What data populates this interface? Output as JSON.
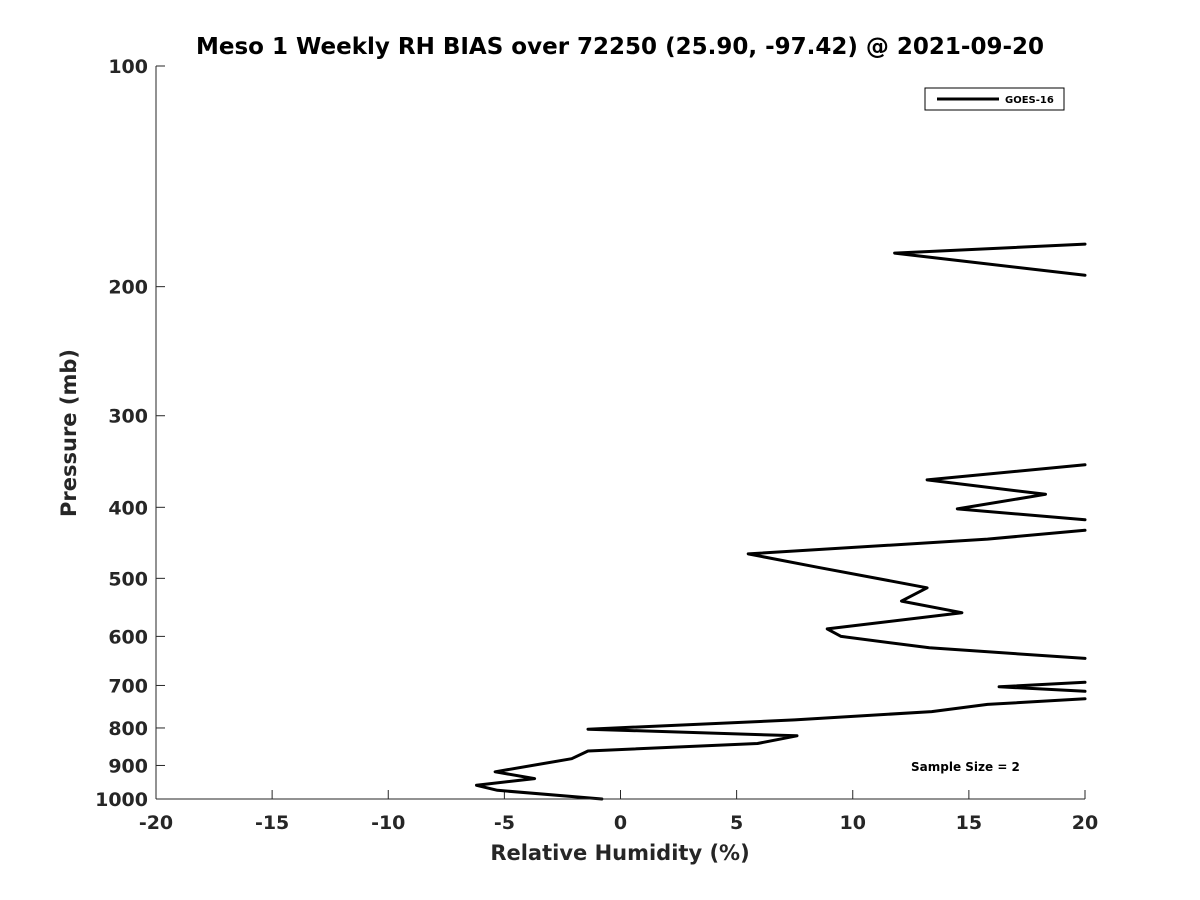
{
  "chart_data": {
    "type": "line",
    "title": "Meso 1 Weekly RH BIAS over 72250 (25.90, -97.42) @ 2021-09-20",
    "xlabel": "Relative Humidity (%)",
    "ylabel": "Pressure (mb)",
    "xlim": [
      -20,
      20
    ],
    "ylim": [
      100,
      1000
    ],
    "y_scale": "log",
    "y_reversed": true,
    "xticks": [
      "-20",
      "-15",
      "-10",
      "-5",
      "0",
      "5",
      "10",
      "15",
      "20"
    ],
    "yticks": [
      "100",
      "200",
      "300",
      "400",
      "500",
      "600",
      "700",
      "800",
      "900",
      "1000"
    ],
    "grid": false,
    "legend_position": "top-right",
    "annotation": "Sample Size = 2",
    "series": [
      {
        "name": "GOES-16",
        "color": "#000000",
        "segments": [
          [
            [
              20,
              175
            ],
            [
              11.8,
              180
            ],
            [
              20,
              193
            ]
          ],
          [
            [
              20,
              350
            ],
            [
              13.2,
              367
            ],
            [
              18.3,
              384
            ],
            [
              14.5,
              402
            ],
            [
              20,
              416
            ]
          ],
          [
            [
              20,
              430
            ],
            [
              15.8,
              442
            ],
            [
              5.5,
              463
            ],
            [
              8.5,
              483
            ],
            [
              13.2,
              515
            ],
            [
              12.1,
              537
            ],
            [
              14.7,
              557
            ],
            [
              8.9,
              586
            ],
            [
              9.5,
              600
            ],
            [
              13.3,
              622
            ],
            [
              20,
              643
            ]
          ],
          [
            [
              20,
              693
            ],
            [
              16.3,
              703
            ],
            [
              20,
              713
            ]
          ],
          [
            [
              20,
              730
            ],
            [
              15.8,
              743
            ],
            [
              13.4,
              760
            ],
            [
              7.5,
              780
            ],
            [
              -1.4,
              803
            ],
            [
              7.6,
              820
            ],
            [
              5.9,
              840
            ],
            [
              -1.4,
              860
            ],
            [
              -2.1,
              881
            ],
            [
              -5.4,
              918
            ],
            [
              -3.7,
              938
            ],
            [
              -6.2,
              958
            ],
            [
              -5.3,
              973
            ],
            [
              -0.8,
              1000
            ]
          ]
        ]
      }
    ]
  }
}
